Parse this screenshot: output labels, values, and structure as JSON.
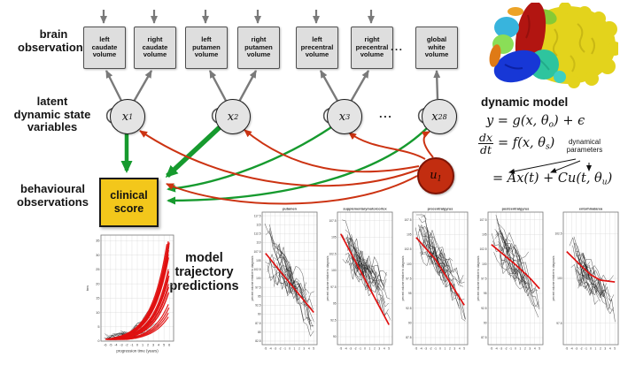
{
  "row_labels": {
    "brain": "brain\nobservations",
    "latent": "latent\ndynamic state\nvariables",
    "behavioural": "behavioural\nobservations",
    "predictions": "model\ntrajectory\npredictions"
  },
  "observation_boxes": [
    "left\ncaudate\nvolume",
    "right\ncaudate\nvolume",
    "left\nputamen\nvolume",
    "right\nputamen\nvolume",
    "left\nprecentral\nvolume",
    "right\nprecentral\nvolume",
    "global\nwhite\nvolume"
  ],
  "ellipsis": "...",
  "latent_nodes": [
    {
      "base": "x",
      "sub": "1"
    },
    {
      "base": "x",
      "sub": "2"
    },
    {
      "base": "x",
      "sub": "3"
    },
    {
      "base": "x",
      "sub": "28"
    }
  ],
  "input_node": {
    "base": "u",
    "sub": "1"
  },
  "clinical_box": "clinical\nscore",
  "dynamic_model": {
    "title": "dynamic model",
    "eq1": {
      "pre": "y = g(x, θ",
      "sub": "o",
      "post": ") + ϵ"
    },
    "frac_top": "dx",
    "frac_bottom": "dt",
    "eq2": {
      "pre": "= f(x, θ",
      "sub": "s",
      "post": ")"
    },
    "annotation": "dynamical\nparameters",
    "eq3": {
      "pre": "= Ax(t) + Cu(t, θ",
      "sub": "u",
      "post": ")"
    }
  },
  "colors": {
    "green_arrow": "#169a2e",
    "red_arrow": "#cc3312",
    "gray_arrow": "#7a7a7a",
    "clinical_yellow": "#f3c71b",
    "input_red": "#c22d10",
    "plot_red": "#e01010"
  },
  "brain_render": {
    "name": "colored-brain-parcellation",
    "region_colors": [
      "#e3d31c",
      "#b21511",
      "#1737d6",
      "#2ec49e",
      "#38b4dd",
      "#8ade57",
      "#df7a16",
      "#eca327",
      "#86ca35"
    ]
  },
  "chart_data": {
    "left_plot": {
      "type": "line",
      "title": "",
      "xlabel": "progression time (years)",
      "ylabel": "tms",
      "xticks": [
        -6,
        -5,
        -4,
        -3,
        -2,
        -1,
        0,
        1,
        2,
        3,
        4,
        5,
        6
      ],
      "yticks": [
        0,
        5,
        10,
        15,
        20,
        25,
        30,
        35
      ],
      "xlim": [
        -6.8,
        6.8
      ],
      "ylim": [
        0,
        37
      ],
      "trend": "accelerating increase",
      "red_mean_trajectory": [
        [
          -6,
          1.5
        ],
        [
          -4,
          2.3
        ],
        [
          -2,
          3.6
        ],
        [
          0,
          5.5
        ],
        [
          1,
          7
        ],
        [
          2,
          9.5
        ],
        [
          3,
          13
        ],
        [
          4,
          19
        ],
        [
          5,
          28
        ],
        [
          5.8,
          35
        ]
      ],
      "n_red_curves": 24,
      "n_subject_lines": 18
    },
    "regional_plots": {
      "shared": {
        "type": "line",
        "ylabel": "percent volume relative to diagnosis",
        "xticks": [
          -5,
          -4,
          -3,
          -2,
          -1,
          0,
          1,
          2,
          3,
          4,
          5
        ],
        "xlim": [
          -5.7,
          5.7
        ],
        "n_subject_lines": 26,
        "trend": "decline toward and after diagnosis"
      },
      "plots": [
        {
          "title": "putamen",
          "yticks": [
            82.5,
            85,
            87.5,
            90,
            92.5,
            95,
            97.5,
            100,
            102.5,
            105,
            107.5,
            110,
            112.5,
            115,
            117.5
          ],
          "ylim": [
            81.5,
            118.5
          ],
          "red_trend": [
            [
              -5,
              107
            ],
            [
              5,
              90.5
            ]
          ]
        },
        {
          "title": "supplementarymotorcortex",
          "yticks": [
            90,
            92.5,
            95,
            97.5,
            100,
            102.5,
            105,
            107.5
          ],
          "ylim": [
            88.8,
            108.8
          ],
          "red_trend": [
            [
              -5,
              105.5
            ],
            [
              5,
              91.8
            ]
          ]
        },
        {
          "title": "precentralgyrus",
          "yticks": [
            87.5,
            90,
            92.5,
            95,
            97.5,
            100,
            102.5,
            105,
            107.5
          ],
          "ylim": [
            86.3,
            108.8
          ],
          "red_trend": [
            [
              -5,
              104.5
            ],
            [
              -1,
              100.8
            ],
            [
              5,
              93
            ]
          ]
        },
        {
          "title": "postcentralgyrus",
          "yticks": [
            87.5,
            90,
            92.5,
            95,
            97.5,
            100,
            102.5,
            105,
            107.5
          ],
          "ylim": [
            86.3,
            108.8
          ],
          "red_trend": [
            [
              -5,
              103.3
            ],
            [
              0,
              99.9
            ],
            [
              3,
              97.6
            ],
            [
              5,
              95.8
            ]
          ]
        },
        {
          "title": "entorhinalarea",
          "yticks": [
            97.5,
            100,
            102.5
          ],
          "ylim": [
            96.3,
            103.7
          ],
          "red_trend": [
            [
              -5,
              101.5
            ],
            [
              -2,
              100.7
            ],
            [
              0,
              100.2
            ],
            [
              2,
              99.9
            ],
            [
              5,
              99.8
            ]
          ]
        }
      ]
    }
  }
}
